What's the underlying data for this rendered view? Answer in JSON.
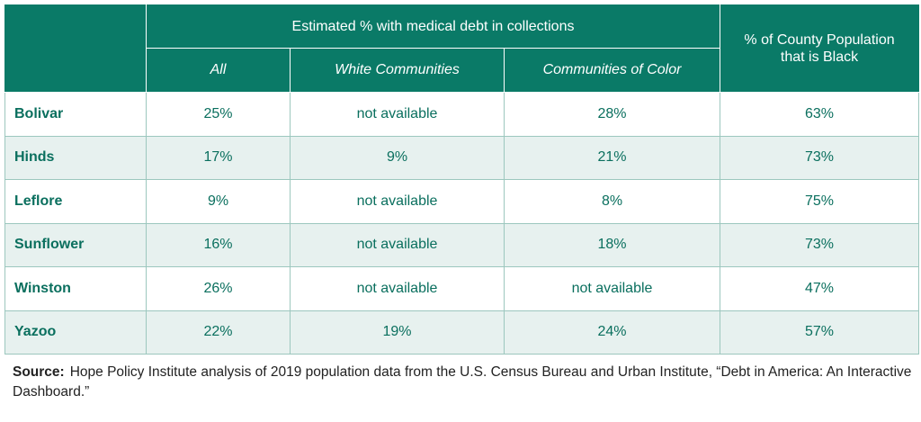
{
  "colors": {
    "header_bg": "#0a7a67",
    "row_alt_bg": "#e7f1ef",
    "text_teal": "#0a6f5e"
  },
  "header": {
    "group_title": "Estimated % with medical debt in collections",
    "black_population_title": "% of County Population that is Black",
    "subcolumns": {
      "all": "All",
      "white": "White Communities",
      "color": "Communities of Color"
    }
  },
  "rows": [
    {
      "county": "Bolivar",
      "all": "25%",
      "white": "not available",
      "color": "28%",
      "black": "63%"
    },
    {
      "county": "Hinds",
      "all": "17%",
      "white": "9%",
      "color": "21%",
      "black": "73%"
    },
    {
      "county": "Leflore",
      "all": "9%",
      "white": "not available",
      "color": "8%",
      "black": "75%"
    },
    {
      "county": "Sunflower",
      "all": "16%",
      "white": "not available",
      "color": "18%",
      "black": "73%"
    },
    {
      "county": "Winston",
      "all": "26%",
      "white": "not available",
      "color": "not available",
      "black": "47%"
    },
    {
      "county": "Yazoo",
      "all": "22%",
      "white": "19%",
      "color": "24%",
      "black": "57%"
    }
  ],
  "source": {
    "label": "Source:",
    "text": "Hope Policy Institute analysis of 2019 population data from the U.S. Census Bureau and Urban Institute, “Debt in America: An Interactive Dashboard.”"
  }
}
